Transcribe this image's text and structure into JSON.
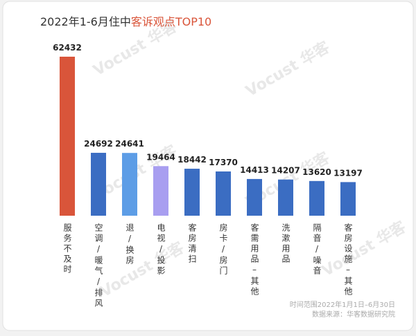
{
  "chart_data": {
    "type": "bar",
    "title": {
      "text": "2022年1-6月住中",
      "highlight": "客诉观点TOP10"
    },
    "categories": [
      "服务不及时",
      "空调/暖气/排风",
      "退/换房",
      "电视/投影",
      "客房清扫",
      "房卡/房门",
      "客需用品–其他",
      "洗漱用品",
      "隔音/噪音",
      "客房设施–其他"
    ],
    "values": [
      62432,
      24692,
      24641,
      19464,
      18442,
      17370,
      14413,
      14207,
      13620,
      13197
    ],
    "colors": [
      "#d9553a",
      "#3b6dc2",
      "#5d9de6",
      "#a89ef0",
      "#3b6dc2",
      "#3b6dc2",
      "#3b6dc2",
      "#3b6dc2",
      "#3b6dc2",
      "#3b6dc2"
    ],
    "footnotes": [
      "时间范围2022年1月1日–6月30日",
      "数据来源：华客数据研究院"
    ],
    "watermark": "Vocust 华客"
  }
}
